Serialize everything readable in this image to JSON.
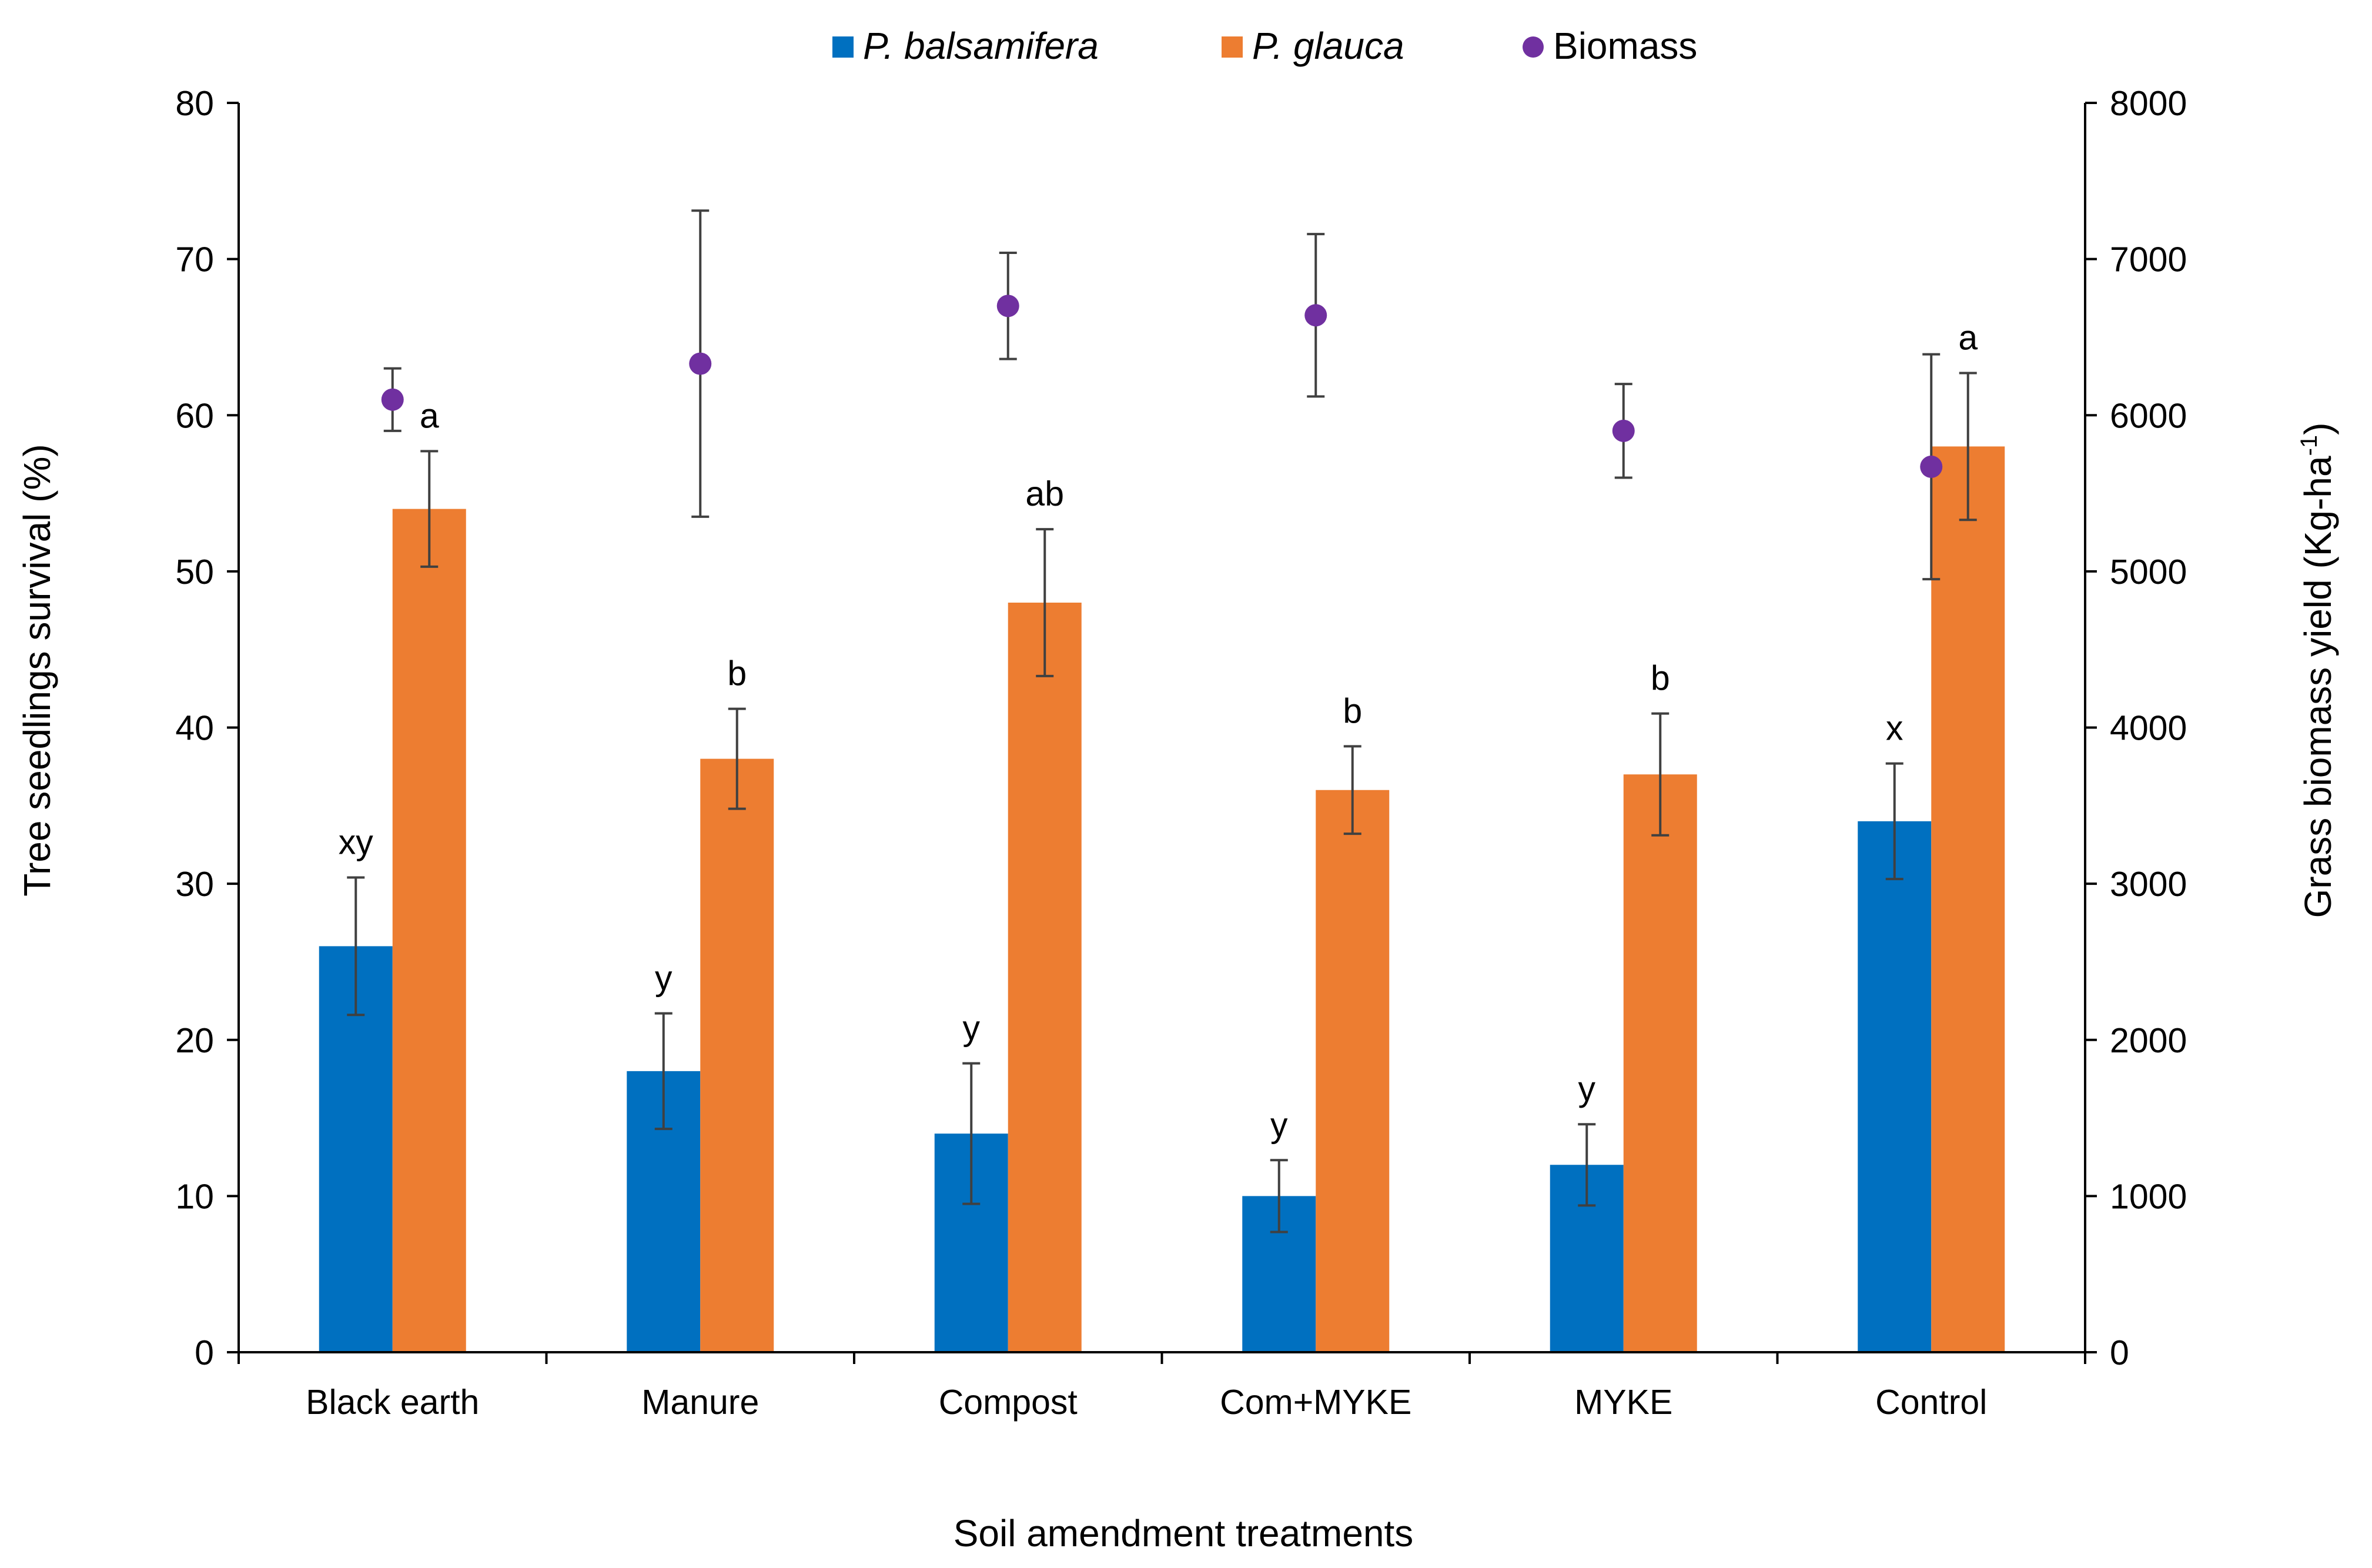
{
  "chart_data": {
    "type": "bar",
    "categories": [
      "Black earth",
      "Manure",
      "Compost",
      "Com+MYKE",
      "MYKE",
      "Control"
    ],
    "xlabel": "Soil amendment treatments",
    "ylabel": "Tree  seedlings survival (%)",
    "y2label": "Grass biomass yield (Kg-ha",
    "y2label_sup": "-1",
    "y2label_end": ")",
    "ylim": [
      0,
      80
    ],
    "y_ticks": [
      "0",
      "10",
      "20",
      "30",
      "40",
      "50",
      "60",
      "70",
      "80"
    ],
    "y2lim": [
      0,
      8000
    ],
    "y2_ticks": [
      "0",
      "1000",
      "2000",
      "3000",
      "4000",
      "5000",
      "6000",
      "7000",
      "8000"
    ],
    "legend_position": "top-center",
    "series": [
      {
        "name": "P. balsamifera",
        "kind": "bar",
        "axis": "left",
        "color": "#0070C0",
        "values": [
          26,
          18,
          14,
          10,
          12,
          34
        ],
        "errors": [
          4.4,
          3.7,
          4.5,
          2.3,
          2.6,
          3.7
        ],
        "letters": [
          "xy",
          "y",
          "y",
          "y",
          "y",
          "x"
        ]
      },
      {
        "name": "P. glauca",
        "kind": "bar",
        "axis": "left",
        "color": "#ED7D31",
        "values": [
          54,
          38,
          48,
          36,
          37,
          58
        ],
        "errors": [
          3.7,
          3.2,
          4.7,
          2.8,
          3.9,
          4.7
        ],
        "letters": [
          "a",
          "b",
          "ab",
          "b",
          "b",
          "a"
        ]
      },
      {
        "name": "Biomass",
        "kind": "scatter",
        "axis": "right",
        "color": "#7030A0",
        "values": [
          6100,
          6330,
          6700,
          6640,
          5900,
          5670
        ],
        "errors": [
          200,
          980,
          340,
          520,
          300,
          720
        ]
      }
    ]
  }
}
